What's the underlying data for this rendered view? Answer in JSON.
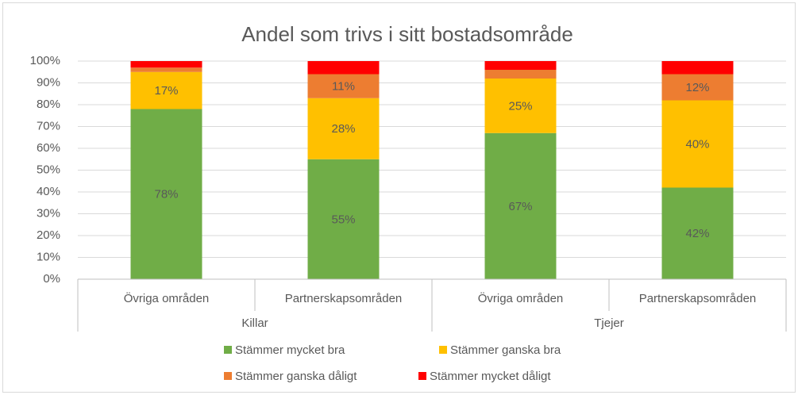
{
  "chart_data": {
    "type": "stacked_bar",
    "title": "Andel som trivs i sitt bostadsområde",
    "categories": [
      "Övriga områden",
      "Partnerskapsområden",
      "Övriga områden",
      "Partnerskapsområden"
    ],
    "groups": [
      "Killar",
      "Tjejer"
    ],
    "series": [
      {
        "name": "Stämmer mycket bra",
        "color": "#70ad47",
        "values": [
          78,
          55,
          67,
          42
        ],
        "value_labels": [
          "78%",
          "55%",
          "67%",
          "42%"
        ]
      },
      {
        "name": "Stämmer ganska bra",
        "color": "#ffc000",
        "values": [
          17,
          28,
          25,
          40
        ],
        "value_labels": [
          "17%",
          "28%",
          "25%",
          "40%"
        ]
      },
      {
        "name": "Stämmer ganska dåligt",
        "color": "#ed7d31",
        "values": [
          2,
          11,
          4,
          12
        ],
        "value_labels": [
          null,
          "11%",
          null,
          "12%"
        ]
      },
      {
        "name": "Stämmer mycket dåligt",
        "color": "#ff0000",
        "values": [
          3,
          6,
          4,
          6
        ]
      }
    ],
    "ylim": [
      0,
      100
    ],
    "yticks": [
      {
        "value": 0,
        "label": "0%"
      },
      {
        "value": 10,
        "label": "10%"
      },
      {
        "value": 20,
        "label": "20%"
      },
      {
        "value": 30,
        "label": "30%"
      },
      {
        "value": 40,
        "label": "40%"
      },
      {
        "value": 50,
        "label": "50%"
      },
      {
        "value": 60,
        "label": "60%"
      },
      {
        "value": 70,
        "label": "70%"
      },
      {
        "value": 80,
        "label": "80%"
      },
      {
        "value": 90,
        "label": "90%"
      },
      {
        "value": 100,
        "label": "100%"
      }
    ],
    "grid": true,
    "legend": "bottom"
  }
}
